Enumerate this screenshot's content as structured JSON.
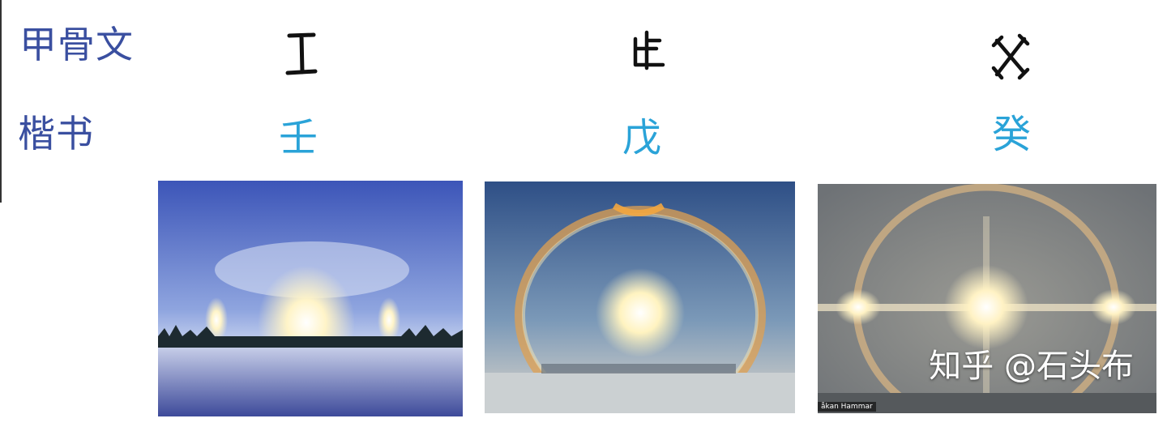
{
  "labels": {
    "oracle_row": "甲骨文",
    "kaishu_row": "楷书"
  },
  "columns": [
    {
      "oracle_glyph_icon": "ren-oracle-glyph-icon",
      "kaishu": "壬"
    },
    {
      "oracle_glyph_icon": "wu-oracle-glyph-icon",
      "kaishu": "戊"
    },
    {
      "oracle_glyph_icon": "gui-oracle-glyph-icon",
      "kaishu": "癸"
    }
  ],
  "photos": {
    "third_credit": "åkan Hammar",
    "watermark": "知乎 @石头布"
  },
  "colors": {
    "label": "#3a4fa0",
    "kaishu": "#2aa3d8"
  }
}
